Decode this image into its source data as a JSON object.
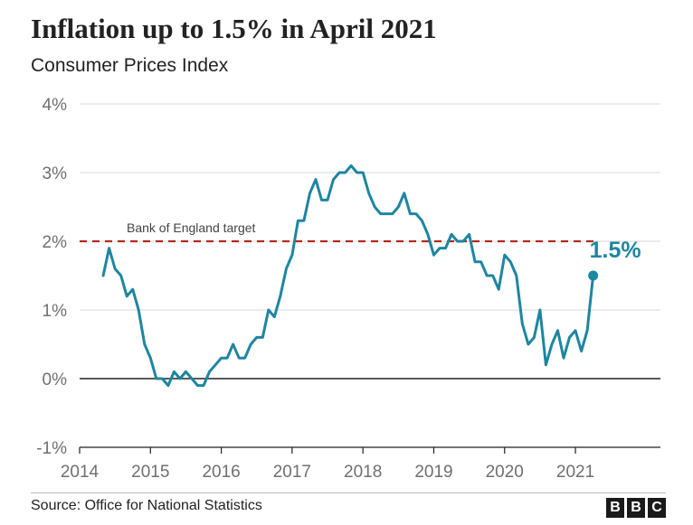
{
  "header": {
    "title": "Inflation up to 1.5% in April 2021",
    "subtitle": "Consumer Prices Index"
  },
  "footer": {
    "source": "Source: Office for National Statistics",
    "logo_letters": [
      "B",
      "B",
      "C"
    ]
  },
  "colors": {
    "line": "#1d86a1",
    "target": "#b5281c",
    "grid": "#d9d9d9",
    "axis": "#222222",
    "text": "#222222",
    "tick_text": "#6f6f6f"
  },
  "chart_data": {
    "type": "line",
    "title": "Inflation up to 1.5% in April 2021",
    "subtitle": "Consumer Prices Index",
    "xlabel": "",
    "ylabel": "",
    "ylim": [
      -1,
      4
    ],
    "xlim": [
      2014,
      2022.2
    ],
    "y_ticks": [
      -1,
      0,
      1,
      2,
      3,
      4
    ],
    "y_tick_labels": [
      "-1%",
      "0%",
      "1%",
      "2%",
      "3%",
      "4%"
    ],
    "x_ticks": [
      2014,
      2015,
      2016,
      2017,
      2018,
      2019,
      2020,
      2021
    ],
    "x_tick_labels": [
      "2014",
      "2015",
      "2016",
      "2017",
      "2018",
      "2019",
      "2020",
      "2021"
    ],
    "grid": true,
    "target": {
      "value": 2.0,
      "label": "Bank of England target"
    },
    "end_label": "1.5%",
    "series": [
      {
        "name": "CPI annual rate (%)",
        "start": "2014-05",
        "values": [
          1.5,
          1.9,
          1.6,
          1.5,
          1.2,
          1.3,
          1.0,
          0.5,
          0.3,
          0.0,
          0.0,
          -0.1,
          0.1,
          0.0,
          0.1,
          0.0,
          -0.1,
          -0.1,
          0.1,
          0.2,
          0.3,
          0.3,
          0.5,
          0.3,
          0.3,
          0.5,
          0.6,
          0.6,
          1.0,
          0.9,
          1.2,
          1.6,
          1.8,
          2.3,
          2.3,
          2.7,
          2.9,
          2.6,
          2.6,
          2.9,
          3.0,
          3.0,
          3.1,
          3.0,
          3.0,
          2.7,
          2.5,
          2.4,
          2.4,
          2.4,
          2.5,
          2.7,
          2.4,
          2.4,
          2.3,
          2.1,
          1.8,
          1.9,
          1.9,
          2.1,
          2.0,
          2.0,
          2.1,
          1.7,
          1.7,
          1.5,
          1.5,
          1.3,
          1.8,
          1.7,
          1.5,
          0.8,
          0.5,
          0.6,
          1.0,
          0.2,
          0.5,
          0.7,
          0.3,
          0.6,
          0.7,
          0.4,
          0.7,
          1.5
        ]
      }
    ]
  }
}
